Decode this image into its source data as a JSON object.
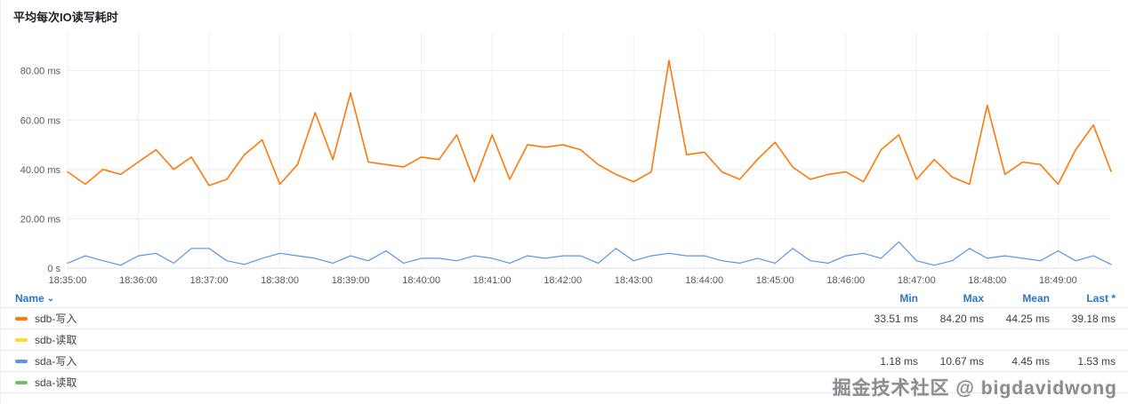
{
  "panel": {
    "title": "平均每次IO读写耗时"
  },
  "watermark": "掘金技术社区 @ bigdavidwong",
  "legend": {
    "name_header": "Name",
    "name_caret": "⌄",
    "columns": [
      "Min",
      "Max",
      "Mean",
      "Last *"
    ],
    "rows": [
      {
        "name": "sdb-写入",
        "color": "#ff780a",
        "min": "33.51 ms",
        "max": "84.20 ms",
        "mean": "44.25 ms",
        "last": "39.18 ms"
      },
      {
        "name": "sdb-读取",
        "color": "#fade2a",
        "min": "",
        "max": "",
        "mean": "",
        "last": ""
      },
      {
        "name": "sda-写入",
        "color": "#5794f2",
        "min": "1.18 ms",
        "max": "10.67 ms",
        "mean": "4.45 ms",
        "last": "1.53 ms"
      },
      {
        "name": "sda-读取",
        "color": "#73bf69",
        "min": "",
        "max": "",
        "mean": "",
        "last": ""
      }
    ]
  },
  "chart_data": {
    "type": "line",
    "title": "平均每次IO读写耗时",
    "unit": "ms",
    "grid": true,
    "legend_position": "bottom",
    "interval_seconds": 15,
    "x_ticks_every_n_points": 4,
    "x_tick_labels": [
      "18:35:00",
      "18:36:00",
      "18:37:00",
      "18:38:00",
      "18:39:00",
      "18:40:00",
      "18:41:00",
      "18:42:00",
      "18:43:00",
      "18:44:00",
      "18:45:00",
      "18:46:00",
      "18:47:00",
      "18:48:00",
      "18:49:00"
    ],
    "y_ticks": [
      {
        "value": 80,
        "label": "80.00 ms"
      },
      {
        "value": 60,
        "label": "60.00 ms"
      },
      {
        "value": 40,
        "label": "40.00 ms"
      },
      {
        "value": 20,
        "label": "20.00 ms"
      },
      {
        "value": 0,
        "label": "0 s"
      }
    ],
    "ylim": [
      0,
      95
    ],
    "series": [
      {
        "name": "sdb-写入",
        "color": "#ff780a",
        "width": 1.6,
        "values": [
          39,
          34,
          40,
          38,
          43,
          48,
          40,
          45,
          33.5,
          36,
          46,
          52,
          34,
          42,
          63,
          44,
          71,
          43,
          42,
          41,
          45,
          44,
          54,
          35,
          54,
          36,
          50,
          49,
          50,
          48,
          42,
          38,
          35,
          39,
          84.2,
          46,
          47,
          39,
          36,
          44,
          51,
          41,
          36,
          38,
          39,
          35,
          48,
          54,
          36,
          44,
          37,
          34,
          66,
          38,
          43,
          42,
          34,
          48,
          58,
          39.2
        ]
      },
      {
        "name": "sda-写入",
        "color": "#5794f2",
        "width": 1.2,
        "values": [
          2,
          5,
          3,
          1.2,
          5,
          6,
          2,
          8,
          8,
          3,
          1.5,
          4,
          6,
          5,
          4,
          2,
          5,
          3,
          7,
          2,
          4,
          4,
          3,
          5,
          4,
          2,
          5,
          4,
          5,
          5,
          2,
          8,
          3,
          5,
          6,
          5,
          5,
          3,
          2,
          4,
          2,
          8,
          3,
          2,
          5,
          6,
          4,
          10.7,
          3,
          1.2,
          3,
          8,
          4,
          5,
          4,
          3,
          7,
          3,
          5,
          1.5
        ]
      },
      {
        "name": "sdb-读取",
        "color": "#fade2a",
        "values": []
      },
      {
        "name": "sda-读取",
        "color": "#73bf69",
        "values": []
      }
    ]
  }
}
